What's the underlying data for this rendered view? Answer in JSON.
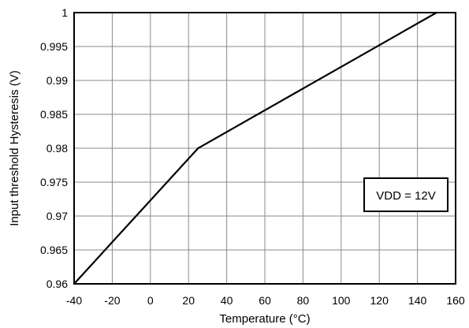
{
  "chart_data": {
    "type": "line",
    "xlabel": "Temperature (°C)",
    "ylabel": "Input threshold Hysteresis (V)",
    "xlim": [
      -40,
      160
    ],
    "ylim": [
      0.96,
      1.0
    ],
    "x_ticks": [
      "-40",
      "-20",
      "0",
      "20",
      "40",
      "60",
      "80",
      "100",
      "120",
      "140",
      "160"
    ],
    "y_ticks": [
      "0.96",
      "0.965",
      "0.97",
      "0.975",
      "0.98",
      "0.985",
      "0.99",
      "0.995",
      "1"
    ],
    "grid": true,
    "series": [
      {
        "x": [
          -40,
          25,
          150
        ],
        "y": [
          0.96,
          0.98,
          1.0
        ]
      }
    ],
    "annotation": "VDD = 12V",
    "annotation_placement": "right-middle"
  }
}
